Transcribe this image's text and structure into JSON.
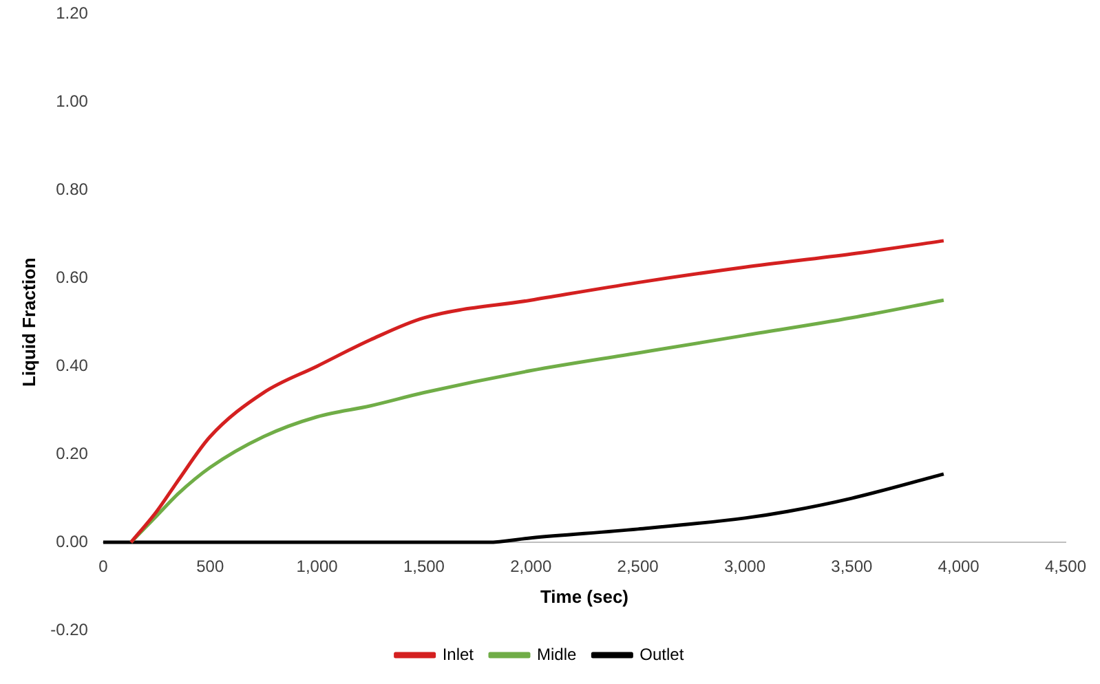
{
  "chart_data": {
    "type": "line",
    "xlabel": "Time (sec)",
    "ylabel": "Liquid Fraction",
    "xlim": [
      0,
      4500
    ],
    "xticks": [
      {
        "value": 0,
        "label": "0"
      },
      {
        "value": 500,
        "label": "500"
      },
      {
        "value": 1000,
        "label": "1,000"
      },
      {
        "value": 1500,
        "label": "1,500"
      },
      {
        "value": 2000,
        "label": "2,000"
      },
      {
        "value": 2500,
        "label": "2,500"
      },
      {
        "value": 3000,
        "label": "3,000"
      },
      {
        "value": 3500,
        "label": "3,500"
      },
      {
        "value": 4000,
        "label": "4,000"
      },
      {
        "value": 4500,
        "label": "4,500"
      }
    ],
    "ylim": [
      -0.2,
      1.2
    ],
    "yticks": [
      {
        "value": -0.2,
        "label": "-0.20"
      },
      {
        "value": 0,
        "label": "0.00"
      },
      {
        "value": 0.2,
        "label": "0.20"
      },
      {
        "value": 0.4,
        "label": "0.40"
      },
      {
        "value": 0.6,
        "label": "0.60"
      },
      {
        "value": 0.8,
        "label": "0.80"
      },
      {
        "value": 1,
        "label": "1.00"
      },
      {
        "value": 1.2,
        "label": "1.20"
      }
    ],
    "grid": false,
    "legend": "bottom",
    "marker": "none",
    "line_style": "solid",
    "series": [
      {
        "name": "Inlet",
        "color": "#d42020",
        "x": [
          130,
          250,
          350,
          500,
          750,
          1000,
          1250,
          1500,
          2000,
          2500,
          3000,
          3500,
          3930
        ],
        "values": [
          0,
          0.07,
          0.14,
          0.24,
          0.34,
          0.4,
          0.46,
          0.51,
          0.55,
          0.59,
          0.625,
          0.655,
          0.685
        ]
      },
      {
        "name": "Midle",
        "color": "#70ad47",
        "x": [
          130,
          250,
          350,
          500,
          750,
          1000,
          1250,
          1500,
          2000,
          2500,
          3000,
          3500,
          3930
        ],
        "values": [
          0,
          0.06,
          0.11,
          0.17,
          0.24,
          0.285,
          0.31,
          0.34,
          0.39,
          0.43,
          0.47,
          0.51,
          0.55
        ]
      },
      {
        "name": "Outlet",
        "color": "#000000",
        "x": [
          0,
          500,
          1000,
          1500,
          1800,
          2000,
          2500,
          3000,
          3200,
          3500,
          3930
        ],
        "values": [
          0,
          0,
          0,
          0,
          0,
          0.01,
          0.03,
          0.055,
          0.07,
          0.1,
          0.155
        ]
      }
    ]
  }
}
